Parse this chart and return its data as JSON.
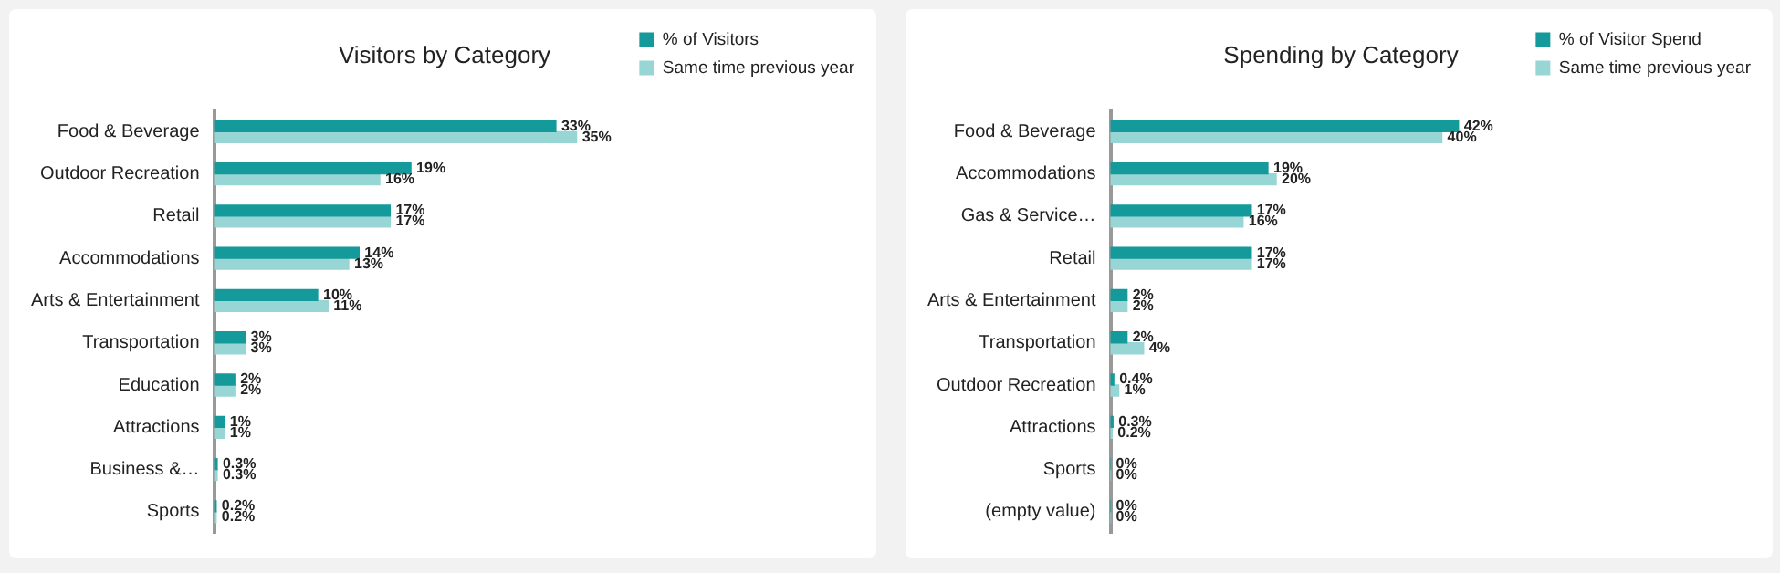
{
  "chart_data": [
    {
      "type": "bar",
      "title": "Visitors by Category",
      "orientation": "horizontal",
      "legend": "top right",
      "grid": false,
      "tick_labels": "y",
      "categories": [
        "Food & Beverage",
        "Outdoor Recreation",
        "Retail",
        "Accommodations",
        "Arts & Entertainment",
        "Transportation",
        "Education",
        "Attractions",
        "Business &…",
        "Sports"
      ],
      "series": [
        {
          "name": "% of Visitors",
          "color": "#149a9a",
          "values": [
            33,
            19,
            17,
            14,
            10,
            3,
            2,
            1,
            0.3,
            0.2
          ],
          "value_labels": [
            "33%",
            "19%",
            "17%",
            "14%",
            "10%",
            "3%",
            "2%",
            "1%",
            "0.3%",
            "0.2%"
          ]
        },
        {
          "name": "Same time previous year",
          "color": "#98d6d6",
          "values": [
            35,
            16,
            17,
            13,
            11,
            3,
            2,
            1,
            0.3,
            0.2
          ],
          "value_labels": [
            "35%",
            "16%",
            "17%",
            "13%",
            "11%",
            "3%",
            "2%",
            "1%",
            "0.3%",
            "0.2%"
          ]
        }
      ]
    },
    {
      "type": "bar",
      "title": "Spending by Category",
      "orientation": "horizontal",
      "legend": "top right",
      "grid": false,
      "tick_labels": "y",
      "categories": [
        "Food & Beverage",
        "Accommodations",
        "Gas & Service…",
        "Retail",
        "Arts & Entertainment",
        "Transportation",
        "Outdoor Recreation",
        "Attractions",
        "Sports",
        "(empty value)"
      ],
      "series": [
        {
          "name": "% of Visitor Spend",
          "color": "#149a9a",
          "values": [
            42,
            19,
            17,
            17,
            2,
            2,
            0.4,
            0.3,
            0,
            0
          ],
          "value_labels": [
            "42%",
            "19%",
            "17%",
            "17%",
            "2%",
            "2%",
            "0.4%",
            "0.3%",
            "0%",
            "0%"
          ]
        },
        {
          "name": "Same time previous year",
          "color": "#98d6d6",
          "values": [
            40,
            20,
            16,
            17,
            2,
            4,
            1,
            0.2,
            0,
            0
          ],
          "value_labels": [
            "40%",
            "20%",
            "16%",
            "17%",
            "2%",
            "4%",
            "1%",
            "0.2%",
            "0%",
            "0%"
          ]
        }
      ]
    }
  ]
}
